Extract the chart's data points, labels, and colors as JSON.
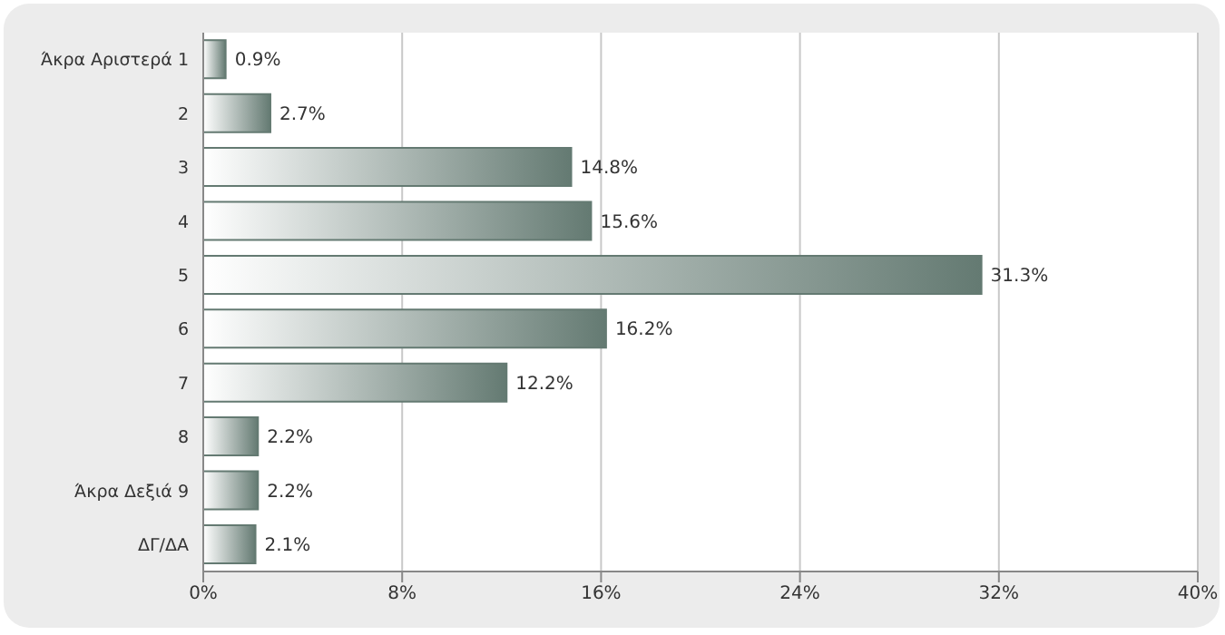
{
  "chart_data": {
    "type": "bar",
    "orientation": "horizontal",
    "categories": [
      "Άκρα Αριστερά 1",
      "2",
      "3",
      "4",
      "5",
      "6",
      "7",
      "8",
      "Άκρα Δεξιά 9",
      "ΔΓ/ΔΑ"
    ],
    "values": [
      0.9,
      2.7,
      14.8,
      15.6,
      31.3,
      16.2,
      12.2,
      2.2,
      2.2,
      2.1
    ],
    "value_labels": [
      "0.9%",
      "2.7%",
      "14.8%",
      "15.6%",
      "31.3%",
      "16.2%",
      "12.2%",
      "2.2%",
      "2.2%",
      "2.1%"
    ],
    "color": "#647a72",
    "xlim": [
      0,
      40
    ],
    "xticks": [
      {
        "value": 0,
        "label": "0%"
      },
      {
        "value": 8,
        "label": "8%"
      },
      {
        "value": 16,
        "label": "16%"
      },
      {
        "value": 24,
        "label": "24%"
      },
      {
        "value": 32,
        "label": "32%"
      },
      {
        "value": 40,
        "label": "40%"
      }
    ],
    "grid": "x",
    "legend": false
  }
}
